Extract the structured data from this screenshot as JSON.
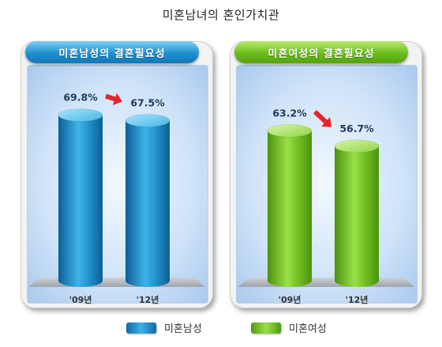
{
  "title": "미혼남녀의 혼인가치관",
  "panels": [
    {
      "header": "미혼남성의 결혼필요성"
    },
    {
      "header": "미혼여성의 결혼필요성"
    }
  ],
  "legend": [
    "미혼남성",
    "미혼여성"
  ],
  "colors": {
    "male": "#1f8fcf",
    "female": "#6cbd1e",
    "arrow": "#e8232a"
  },
  "chart_data": [
    {
      "type": "bar",
      "title": "미혼남성의 결혼필요성",
      "categories": [
        "'09년",
        "'12년"
      ],
      "series": [
        {
          "name": "미혼남성",
          "values": [
            69.8,
            67.5
          ]
        }
      ],
      "data_labels": [
        "69.8%",
        "67.5%"
      ],
      "ylim": [
        0,
        100
      ]
    },
    {
      "type": "bar",
      "title": "미혼여성의 결혼필요성",
      "categories": [
        "'09년",
        "'12년"
      ],
      "series": [
        {
          "name": "미혼여성",
          "values": [
            63.2,
            56.7
          ]
        }
      ],
      "data_labels": [
        "63.2%",
        "56.7%"
      ],
      "ylim": [
        0,
        100
      ]
    }
  ]
}
